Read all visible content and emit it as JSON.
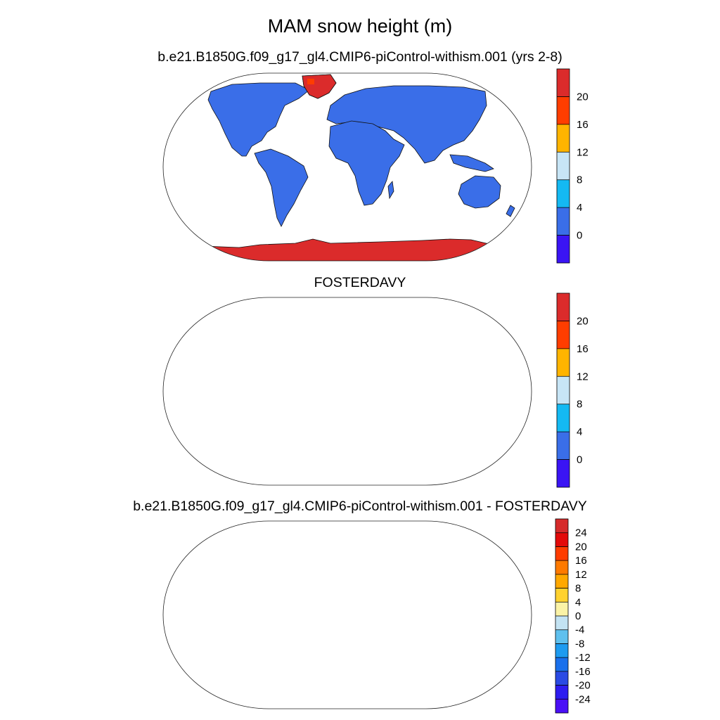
{
  "figure": {
    "title": "MAM snow height (m)"
  },
  "panels": [
    {
      "title": "b.e21.B1850G.f09_g17_gl4.CMIP6-piControl-withism.001 (yrs 2-8)",
      "colorbar": {
        "labels": [
          "20",
          "16",
          "12",
          "8",
          "4",
          "0"
        ],
        "colors": [
          "#db2b2b",
          "#ff3d00",
          "#ffb400",
          "#c7e5f6",
          "#14b9f2",
          "#3a6ee8",
          "#3a14f4"
        ]
      }
    },
    {
      "title": "FOSTERDAVY",
      "colorbar": {
        "labels": [
          "20",
          "16",
          "12",
          "8",
          "4",
          "0"
        ],
        "colors": [
          "#db2b2b",
          "#ff3d00",
          "#ffb400",
          "#c7e5f6",
          "#14b9f2",
          "#3a6ee8",
          "#3a14f4"
        ]
      }
    },
    {
      "title": "b.e21.B1850G.f09_g17_gl4.CMIP6-piControl-withism.001 - FOSTERDAVY",
      "colorbar": {
        "labels": [
          "24",
          "20",
          "16",
          "12",
          "8",
          "4",
          "0",
          "-4",
          "-8",
          "-12",
          "-16",
          "-20",
          "-24"
        ],
        "colors": [
          "#d62b2b",
          "#e30a0a",
          "#ff3c00",
          "#ff7a00",
          "#ffa800",
          "#ffd230",
          "#fbf3a6",
          "#c3e3f3",
          "#5fc0ee",
          "#1e9bf0",
          "#1a70ec",
          "#2a4ae4",
          "#2e1cf0",
          "#4a0ff6"
        ]
      }
    }
  ]
}
